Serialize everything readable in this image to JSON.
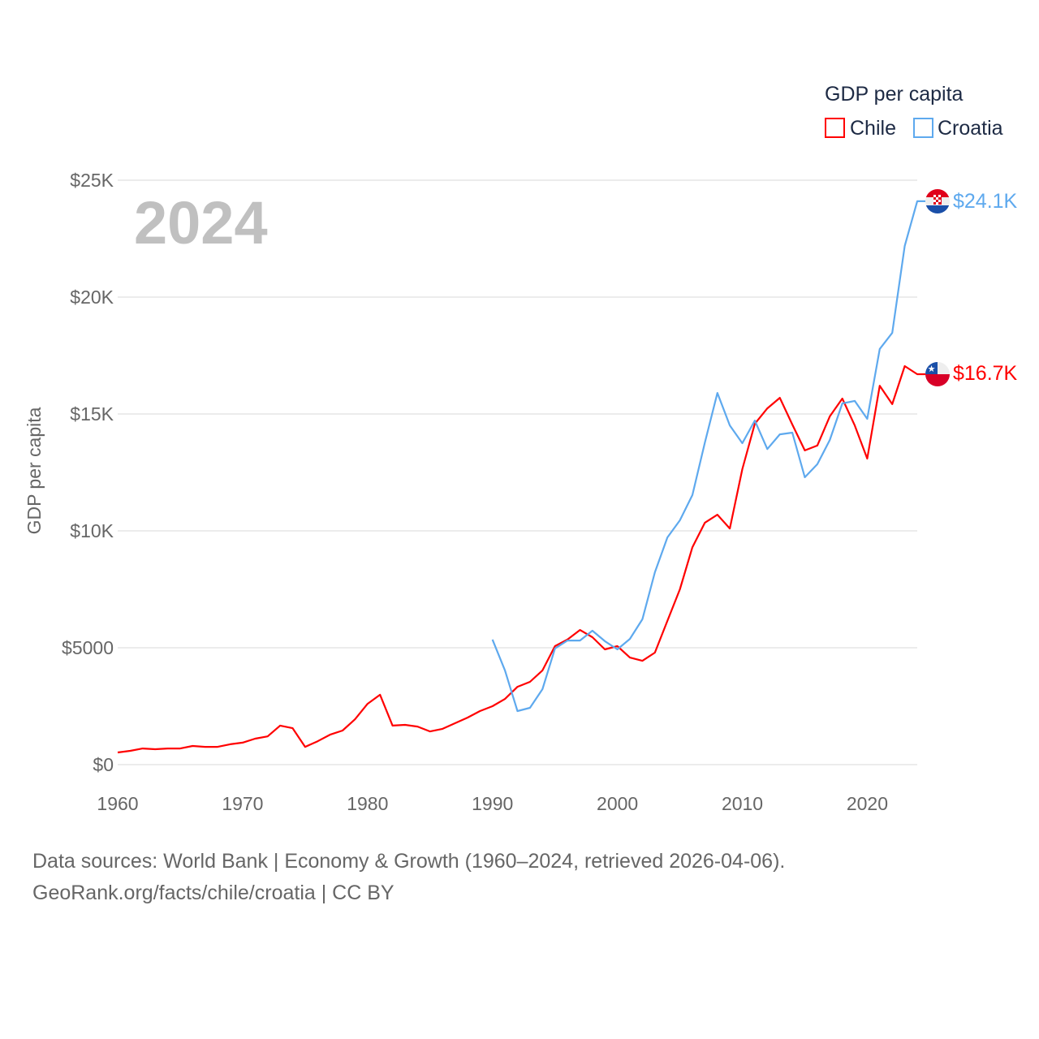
{
  "chart_data": {
    "type": "line",
    "title": "2024",
    "ylabel": "GDP per capita",
    "xlabel": "",
    "legend_title": "GDP per capita",
    "legend_position": "top-right",
    "xlim": [
      1960,
      2024
    ],
    "ylim": [
      0,
      25000
    ],
    "x_ticks": [
      1960,
      1970,
      1980,
      1990,
      2000,
      2010,
      2020
    ],
    "x_tick_labels": [
      "1960",
      "1970",
      "1980",
      "1990",
      "2000",
      "2010",
      "2020"
    ],
    "y_ticks": [
      0,
      5000,
      10000,
      15000,
      20000,
      25000
    ],
    "y_tick_labels": [
      "$0",
      "$5000",
      "$10K",
      "$15K",
      "$20K",
      "$25K"
    ],
    "grid": true,
    "series": [
      {
        "name": "Chile",
        "color": "#ff0000",
        "flag": "chile-flag",
        "end_label": "$16.7K",
        "start_year": 1960,
        "values": [
          520,
          590,
          690,
          660,
          690,
          690,
          800,
          760,
          760,
          870,
          940,
          1110,
          1210,
          1670,
          1560,
          760,
          1000,
          1280,
          1460,
          1940,
          2600,
          2990,
          1670,
          1700,
          1630,
          1420,
          1530,
          1770,
          2010,
          2290,
          2500,
          2810,
          3330,
          3540,
          4030,
          5070,
          5350,
          5760,
          5450,
          4930,
          5070,
          4580,
          4440,
          4790,
          6150,
          7500,
          9300,
          10350,
          10690,
          10100,
          12640,
          14580,
          15240,
          15690,
          14550,
          13440,
          13650,
          14900,
          15660,
          14510,
          13090,
          16210,
          15420,
          17050,
          16700
        ]
      },
      {
        "name": "Croatia",
        "color": "#5ea9ee",
        "flag": "croatia-flag",
        "end_label": "$24.1K",
        "start_year": 1990,
        "values": [
          5350,
          4030,
          2290,
          2430,
          3230,
          4970,
          5310,
          5310,
          5730,
          5280,
          4930,
          5380,
          6220,
          8230,
          9720,
          10450,
          11530,
          13780,
          15900,
          14510,
          13750,
          14720,
          13500,
          14130,
          14200,
          12290,
          12850,
          13890,
          15450,
          15560,
          14790,
          17780,
          18470,
          22190,
          24100
        ]
      }
    ]
  },
  "footer": {
    "line1": "Data sources: World Bank | Economy & Growth (1960–2024, retrieved 2026-04-06).",
    "line2": "GeoRank.org/facts/chile/croatia | CC BY"
  }
}
